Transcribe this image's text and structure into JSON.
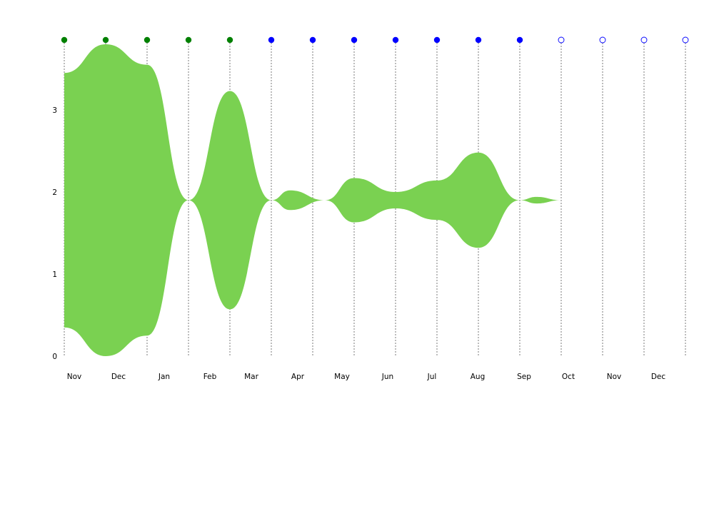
{
  "chart_data": {
    "type": "area",
    "title": "",
    "xlabel": "",
    "ylabel": "",
    "ylim": [
      0,
      4
    ],
    "y_ticks": [
      0,
      1,
      2,
      3
    ],
    "center_y": 1.9,
    "x_month_labels": [
      "Nov",
      "Dec",
      "Jan",
      "Feb",
      "Mar",
      "Apr",
      "May",
      "Jun",
      "Jul",
      "Aug",
      "Sep",
      "Oct",
      "Nov",
      "Dec"
    ],
    "fill_color": "#7ad151",
    "series": [
      {
        "points": [
          {
            "t": 0,
            "half_width": 1.55
          },
          {
            "t": 1,
            "half_width": 1.9
          },
          {
            "t": 2,
            "half_width": 1.65
          },
          {
            "t": 3,
            "half_width": 0.0
          },
          {
            "t": 4,
            "half_width": 1.33
          },
          {
            "t": 5,
            "half_width": 0.0
          },
          {
            "t": 5.45,
            "half_width": 0.12
          },
          {
            "t": 6.3,
            "half_width": 0.0
          },
          {
            "t": 7,
            "half_width": 0.27
          },
          {
            "t": 8,
            "half_width": 0.1
          },
          {
            "t": 9,
            "half_width": 0.24
          },
          {
            "t": 10,
            "half_width": 0.58
          },
          {
            "t": 11,
            "half_width": 0.0
          },
          {
            "t": 11.4,
            "half_width": 0.04
          },
          {
            "t": 12,
            "half_width": 0.0
          }
        ]
      }
    ],
    "markers": [
      {
        "t": 0,
        "status": "filled",
        "color": "#008000"
      },
      {
        "t": 1,
        "status": "filled",
        "color": "#008000"
      },
      {
        "t": 2,
        "status": "filled",
        "color": "#008000"
      },
      {
        "t": 3,
        "status": "filled",
        "color": "#008000"
      },
      {
        "t": 4,
        "status": "filled",
        "color": "#008000"
      },
      {
        "t": 5,
        "status": "filled",
        "color": "#0000ff"
      },
      {
        "t": 6,
        "status": "filled",
        "color": "#0000ff"
      },
      {
        "t": 7,
        "status": "filled",
        "color": "#0000ff"
      },
      {
        "t": 8,
        "status": "filled",
        "color": "#0000ff"
      },
      {
        "t": 9,
        "status": "filled",
        "color": "#0000ff"
      },
      {
        "t": 10,
        "status": "filled",
        "color": "#0000ff"
      },
      {
        "t": 11,
        "status": "filled",
        "color": "#0000ff"
      },
      {
        "t": 12,
        "status": "open",
        "color": "#0000ff"
      },
      {
        "t": 13,
        "status": "open",
        "color": "#0000ff"
      },
      {
        "t": 14,
        "status": "open",
        "color": "#0000ff"
      },
      {
        "t": 15,
        "status": "open",
        "color": "#0000ff"
      }
    ],
    "grid": true,
    "grid_color": "#999999"
  }
}
